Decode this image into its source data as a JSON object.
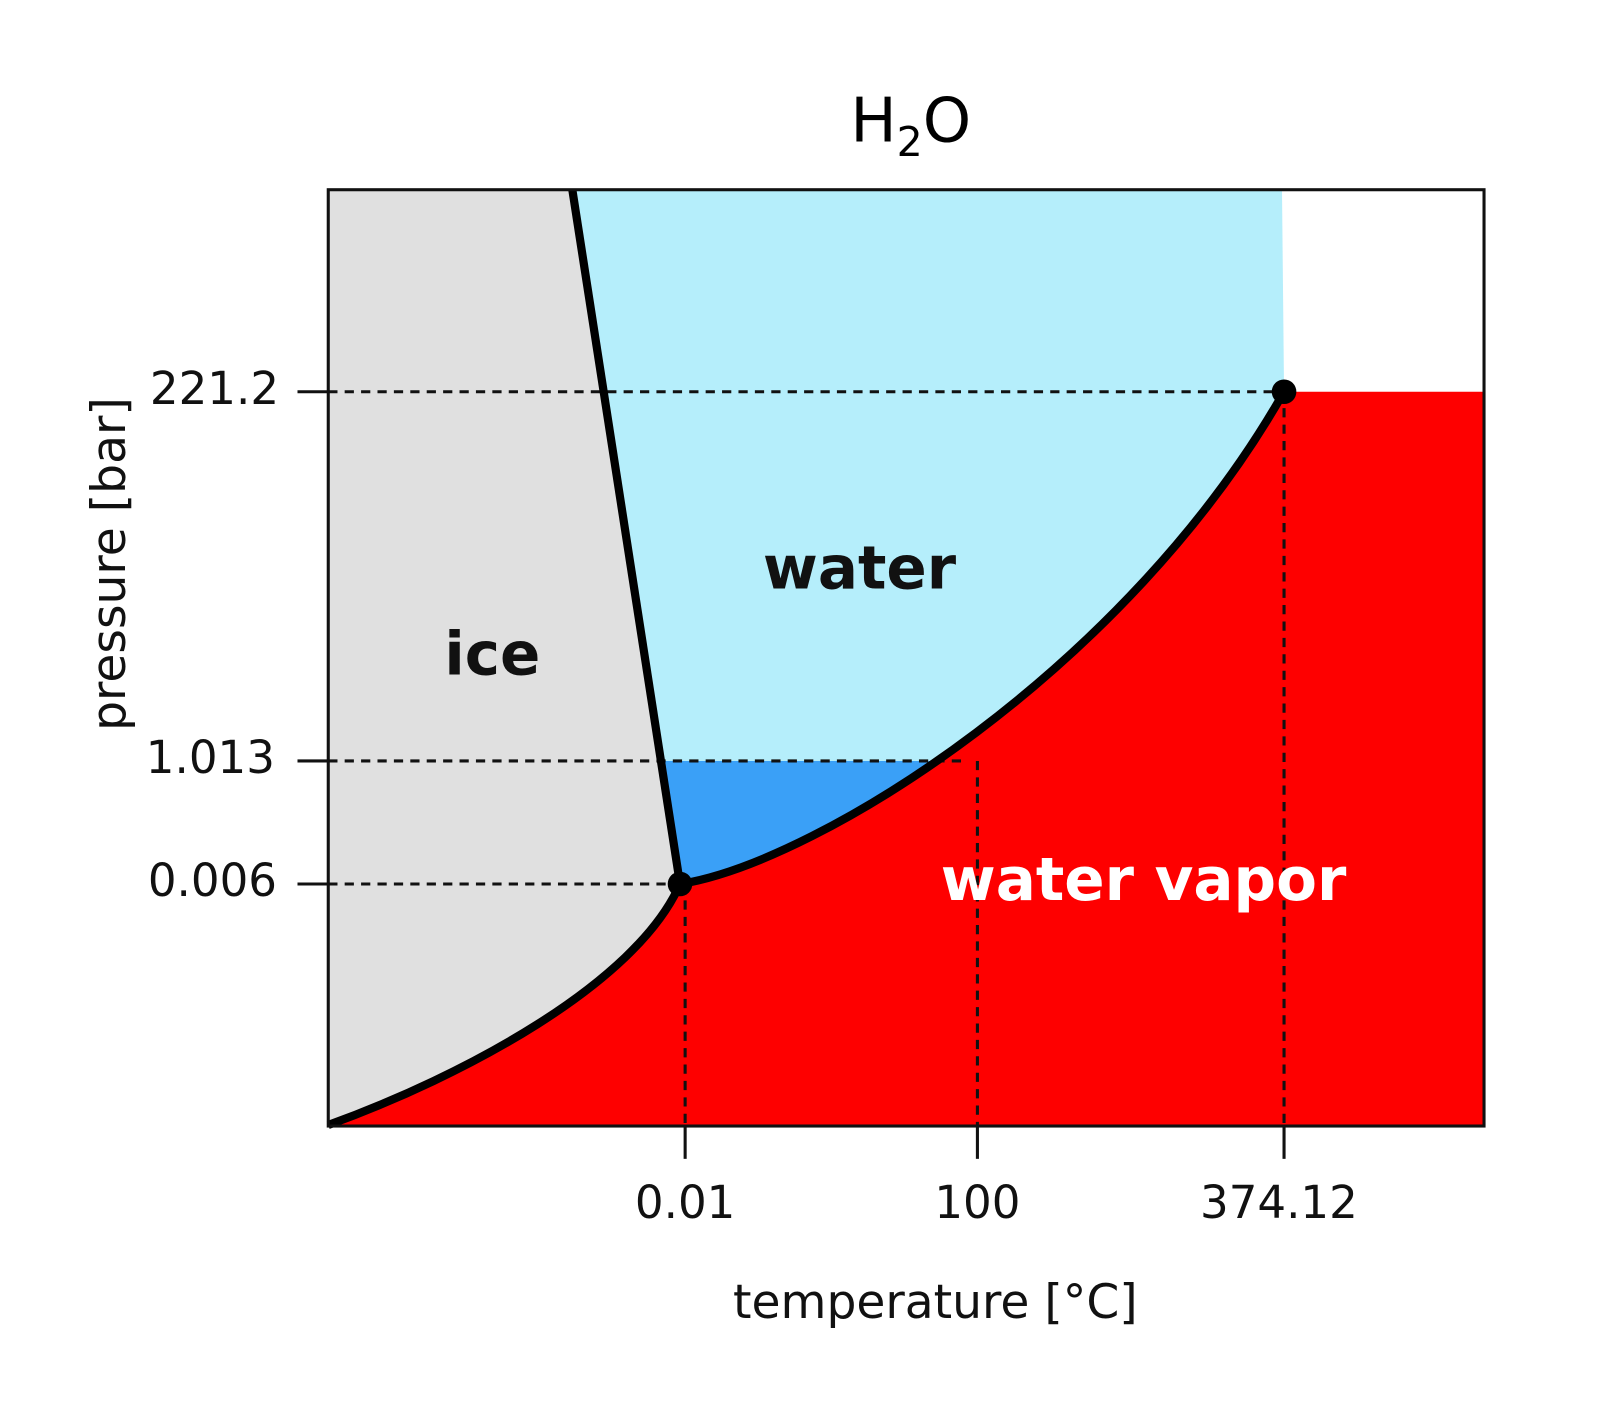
{
  "title": {
    "main": "H",
    "subscript": "2",
    "end": "O"
  },
  "x_axis": {
    "label": "temperature [°C]",
    "ticks": [
      "0.01",
      "100",
      "374.12"
    ]
  },
  "y_axis": {
    "label": "pressure [bar]",
    "ticks": [
      "221.2",
      "1.013",
      "0.006"
    ]
  },
  "regions": [
    {
      "label": "ice"
    },
    {
      "label": "water"
    },
    {
      "label": "water vapor"
    }
  ]
}
